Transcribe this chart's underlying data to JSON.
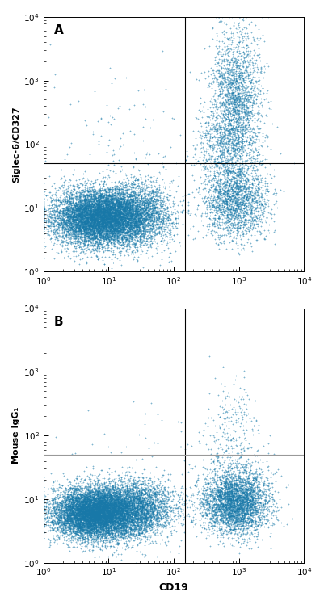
{
  "panel_A": {
    "label": "A",
    "ylabel": "Siglec-6/CD327",
    "gate_x": 150,
    "gate_y": 50,
    "gate_color_x": "black",
    "gate_color_y": "black",
    "clusters": [
      {
        "name": "bottom_left_main",
        "x_log_mean": 0.85,
        "x_log_std": 0.35,
        "y_log_mean": 0.85,
        "y_log_std": 0.22,
        "n": 8000
      },
      {
        "name": "bottom_left_tail",
        "x_log_mean": 1.4,
        "x_log_std": 0.3,
        "y_log_mean": 0.9,
        "y_log_std": 0.25,
        "n": 2500
      },
      {
        "name": "bottom_right",
        "x_log_mean": 2.95,
        "x_log_std": 0.25,
        "y_log_mean": 1.1,
        "y_log_std": 0.3,
        "n": 1800
      },
      {
        "name": "top_right_vertical",
        "x_log_mean": 2.95,
        "x_log_std": 0.2,
        "y_log_mean": 2.7,
        "y_log_std": 0.55,
        "n": 2000
      },
      {
        "name": "top_right_low",
        "x_log_mean": 2.8,
        "x_log_std": 0.25,
        "y_log_mean": 1.9,
        "y_log_std": 0.3,
        "n": 600
      },
      {
        "name": "sparse_left_high",
        "x_log_mean": 1.2,
        "x_log_std": 0.5,
        "y_log_mean": 2.0,
        "y_log_std": 0.6,
        "n": 120
      }
    ]
  },
  "panel_B": {
    "label": "B",
    "ylabel": "Mouse IgG₁",
    "gate_x": 150,
    "gate_y": 50,
    "gate_color_x": "black",
    "gate_color_y": "#999999",
    "clusters": [
      {
        "name": "bottom_left_main",
        "x_log_mean": 0.8,
        "x_log_std": 0.32,
        "y_log_mean": 0.78,
        "y_log_std": 0.2,
        "n": 9000
      },
      {
        "name": "bottom_left_tail",
        "x_log_mean": 1.4,
        "x_log_std": 0.3,
        "y_log_mean": 0.85,
        "y_log_std": 0.22,
        "n": 3000
      },
      {
        "name": "bottom_right_main",
        "x_log_mean": 2.95,
        "x_log_std": 0.25,
        "y_log_mean": 0.95,
        "y_log_std": 0.25,
        "n": 3500
      },
      {
        "name": "top_right_sparse",
        "x_log_mean": 2.9,
        "x_log_std": 0.22,
        "y_log_mean": 2.0,
        "y_log_std": 0.45,
        "n": 300
      },
      {
        "name": "sparse_mid",
        "x_log_mean": 1.5,
        "x_log_std": 0.6,
        "y_log_mean": 1.5,
        "y_log_std": 0.5,
        "n": 80
      }
    ]
  },
  "xlabel": "CD19",
  "xlim": [
    1,
    10000
  ],
  "ylim": [
    1,
    10000
  ],
  "dot_size": 1.5,
  "dot_alpha": 0.55,
  "dot_color": "#1878a8",
  "background_color": "#ffffff",
  "fig_width": 4.01,
  "fig_height": 7.49,
  "dpi": 100,
  "marker": "+",
  "linewidths": 0.5
}
